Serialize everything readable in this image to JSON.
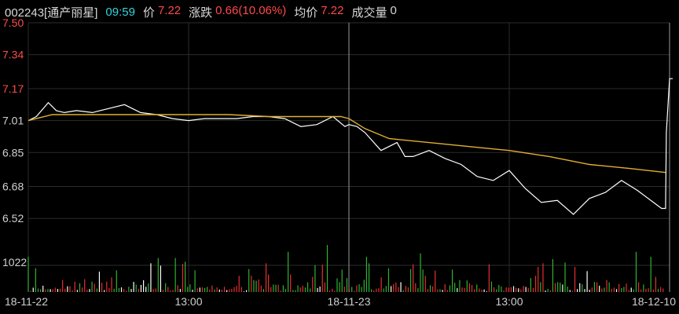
{
  "header": {
    "code": "002243[通产丽星]",
    "time": "09:59",
    "price_label": "价",
    "price": "7.22",
    "change_label": "涨跌",
    "change": "0.66(10.06%)",
    "avg_label": "均价",
    "avg": "7.22",
    "volume_label": "成交量",
    "volume": "0"
  },
  "chart_data": {
    "type": "line",
    "title": "",
    "xlabel": "",
    "ylabel": "",
    "price_ylim": [
      6.45,
      7.5
    ],
    "price_ticks": [
      "7.50",
      "7.34",
      "7.17",
      "7.01",
      "6.85",
      "6.68",
      "6.52"
    ],
    "volume_tick": "1022",
    "volume_ylim": [
      0,
      1500
    ],
    "x_tick_labels": [
      "18-11-22",
      "13:00",
      "18-11-23",
      "13:00",
      "18-12-10"
    ],
    "x_domain": [
      0,
      8
    ],
    "x_ticks": [
      0,
      2,
      4,
      6,
      8
    ],
    "day_separators": [
      4,
      8
    ],
    "grid": true,
    "colors": {
      "price": "#ffffff",
      "average": "#e0b030",
      "grid": "#2b2b2b",
      "axis_text": "#d0d0d0",
      "axis_text_up": "#ff4a4a",
      "up_volume": "#e63030",
      "down_volume": "#2fb32f",
      "flat_volume": "#ffffff"
    },
    "series": [
      {
        "key": "price",
        "x": [
          0,
          0.1,
          0.25,
          0.35,
          0.45,
          0.6,
          0.8,
          1.0,
          1.2,
          1.4,
          1.6,
          1.8,
          2.0,
          2.2,
          2.4,
          2.6,
          2.8,
          3.0,
          3.2,
          3.4,
          3.6,
          3.8,
          3.95,
          4.0,
          4.1,
          4.2,
          4.4,
          4.6,
          4.7,
          4.8,
          5.0,
          5.2,
          5.4,
          5.6,
          5.8,
          6.0,
          6.2,
          6.4,
          6.6,
          6.8,
          7.0,
          7.2,
          7.4,
          7.6,
          7.8,
          7.9,
          7.95,
          7.96,
          8.0
        ],
        "y": [
          7.01,
          7.03,
          7.1,
          7.06,
          7.05,
          7.06,
          7.05,
          7.07,
          7.09,
          7.05,
          7.04,
          7.02,
          7.01,
          7.02,
          7.02,
          7.02,
          7.03,
          7.03,
          7.02,
          6.98,
          6.99,
          7.03,
          6.98,
          6.99,
          6.98,
          6.95,
          6.86,
          6.9,
          6.83,
          6.83,
          6.86,
          6.82,
          6.79,
          6.73,
          6.71,
          6.76,
          6.67,
          6.6,
          6.61,
          6.54,
          6.62,
          6.65,
          6.71,
          6.66,
          6.6,
          6.57,
          6.57,
          6.95,
          7.22
        ]
      },
      {
        "key": "average",
        "x": [
          0,
          0.3,
          0.8,
          1.5,
          2.0,
          2.5,
          3.0,
          3.5,
          3.9,
          4.0,
          4.2,
          4.5,
          5.0,
          5.5,
          6.0,
          6.5,
          7.0,
          7.5,
          7.95
        ],
        "y": [
          7.01,
          7.04,
          7.04,
          7.04,
          7.04,
          7.04,
          7.03,
          7.03,
          7.03,
          7.02,
          6.97,
          6.92,
          6.9,
          6.88,
          6.86,
          6.83,
          6.79,
          6.77,
          6.75
        ]
      }
    ],
    "volume": {
      "up": [
        1080,
        1100,
        560,
        480,
        670,
        580,
        460,
        400,
        820,
        620,
        960,
        1060,
        1050,
        560,
        490
      ],
      "down": [
        1800,
        1130,
        1480,
        1030,
        1300,
        1260,
        830,
        1100,
        1350,
        910,
        860,
        1540,
        1160,
        880,
        1100
      ],
      "flat": [
        800,
        780,
        960,
        450,
        1010,
        1100,
        300,
        240
      ]
    }
  }
}
